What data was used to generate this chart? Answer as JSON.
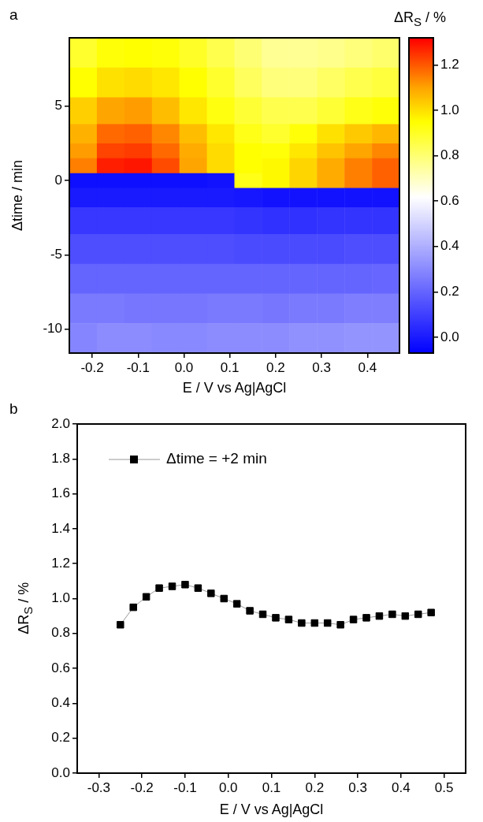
{
  "chart_data": [
    {
      "type": "heatmap",
      "title": "a",
      "xlabel": "E / V vs Ag|AgCl",
      "ylabel": "Δtime / min",
      "clabel": "ΔR$_{S}$ / %",
      "x": [
        -0.22,
        -0.16,
        -0.1,
        -0.04,
        0.02,
        0.08,
        0.14,
        0.2,
        0.26,
        0.32,
        0.38,
        0.44
      ],
      "y": [
        8.6,
        6.6,
        4.6,
        3,
        2,
        1,
        0,
        -1,
        -2.6,
        -4.6,
        -6.6,
        -8.6,
        -10.6
      ],
      "cells": [
        [
          0.89,
          0.94,
          0.95,
          0.94,
          0.9,
          0.85,
          0.8,
          0.76,
          0.76,
          0.77,
          0.79,
          0.81
        ],
        [
          0.95,
          1.0,
          1.01,
          0.99,
          0.95,
          0.89,
          0.83,
          0.79,
          0.79,
          0.82,
          0.85,
          0.87
        ],
        [
          1.03,
          1.1,
          1.11,
          1.06,
          0.99,
          0.93,
          0.88,
          0.85,
          0.85,
          0.88,
          0.92,
          0.94
        ],
        [
          1.08,
          1.18,
          1.19,
          1.14,
          1.06,
          0.99,
          0.92,
          0.89,
          0.94,
          1.0,
          1.04,
          1.07
        ],
        [
          1.11,
          1.23,
          1.24,
          1.18,
          1.09,
          1.01,
          0.95,
          0.94,
          0.99,
          1.05,
          1.1,
          1.14
        ],
        [
          1.15,
          1.28,
          1.29,
          1.22,
          1.1,
          1.01,
          0.95,
          0.96,
          1.02,
          1.09,
          1.15,
          1.19
        ],
        [
          -0.03,
          -0.03,
          -0.03,
          -0.03,
          -0.03,
          -0.02,
          0.92,
          0.96,
          1.02,
          1.09,
          1.15,
          1.19
        ],
        [
          0.0,
          0.0,
          0.0,
          0.0,
          0.0,
          0.0,
          -0.01,
          -0.02,
          -0.02,
          -0.02,
          -0.02,
          -0.02
        ],
        [
          0.08,
          0.08,
          0.08,
          0.08,
          0.08,
          0.08,
          0.07,
          0.06,
          0.06,
          0.07,
          0.07,
          0.07
        ],
        [
          0.14,
          0.14,
          0.14,
          0.14,
          0.14,
          0.14,
          0.13,
          0.13,
          0.13,
          0.13,
          0.14,
          0.14
        ],
        [
          0.2,
          0.2,
          0.2,
          0.2,
          0.2,
          0.2,
          0.2,
          0.2,
          0.2,
          0.2,
          0.2,
          0.21
        ],
        [
          0.26,
          0.26,
          0.25,
          0.25,
          0.25,
          0.26,
          0.26,
          0.25,
          0.26,
          0.26,
          0.27,
          0.27
        ],
        [
          0.29,
          0.31,
          0.31,
          0.3,
          0.3,
          0.31,
          0.31,
          0.31,
          0.32,
          0.32,
          0.33,
          0.33
        ]
      ],
      "xlim": [
        -0.25,
        0.47
      ],
      "xticks": [
        -0.2,
        -0.1,
        {
          "value": 0,
          "label": "0.0"
        },
        0.1,
        0.2,
        0.3,
        0.4
      ],
      "ylim": [
        -11.6,
        9.6
      ],
      "yticks": [
        -10,
        -5,
        0,
        5
      ],
      "clim": [
        -0.07,
        1.32
      ],
      "cticks": [
        {
          "value": 0,
          "label": "0.0"
        },
        0.2,
        0.4,
        0.6,
        0.8,
        {
          "value": 1,
          "label": "1.0"
        },
        1.2
      ]
    },
    {
      "type": "line",
      "title": "b",
      "xlabel": "E / V vs Ag|AgCl",
      "ylabel": "ΔR$_{S}$ / %",
      "x": [
        -0.25,
        -0.22,
        -0.19,
        -0.16,
        -0.13,
        -0.1,
        -0.07,
        -0.04,
        -0.01,
        0.02,
        0.05,
        0.08,
        0.11,
        0.14,
        0.17,
        0.2,
        0.23,
        0.26,
        0.29,
        0.32,
        0.35,
        0.38,
        0.41,
        0.44,
        0.47
      ],
      "series": [
        {
          "name": "Δtime = +2 min",
          "color": "#000000",
          "values": [
            0.85,
            0.95,
            1.01,
            1.06,
            1.07,
            1.08,
            1.06,
            1.03,
            1.0,
            0.97,
            0.93,
            0.91,
            0.89,
            0.88,
            0.86,
            0.86,
            0.86,
            0.85,
            0.88,
            0.89,
            0.9,
            0.91,
            0.9,
            0.91,
            0.92
          ]
        }
      ],
      "marker": "square",
      "legend": "top left",
      "grid": false,
      "xlim": [
        -0.35,
        0.55
      ],
      "xticks": [
        -0.3,
        -0.2,
        -0.1,
        {
          "value": 0,
          "label": "0.0"
        },
        0.1,
        0.2,
        0.3,
        0.4,
        0.5
      ],
      "ylim": [
        0,
        2
      ],
      "yticks": [
        {
          "value": 0,
          "label": "0.0"
        },
        0.2,
        0.4,
        0.6,
        0.8,
        {
          "value": 1,
          "label": "1.0"
        },
        1.2,
        1.4,
        1.6,
        1.8,
        {
          "value": 2,
          "label": "2.0"
        }
      ]
    }
  ]
}
